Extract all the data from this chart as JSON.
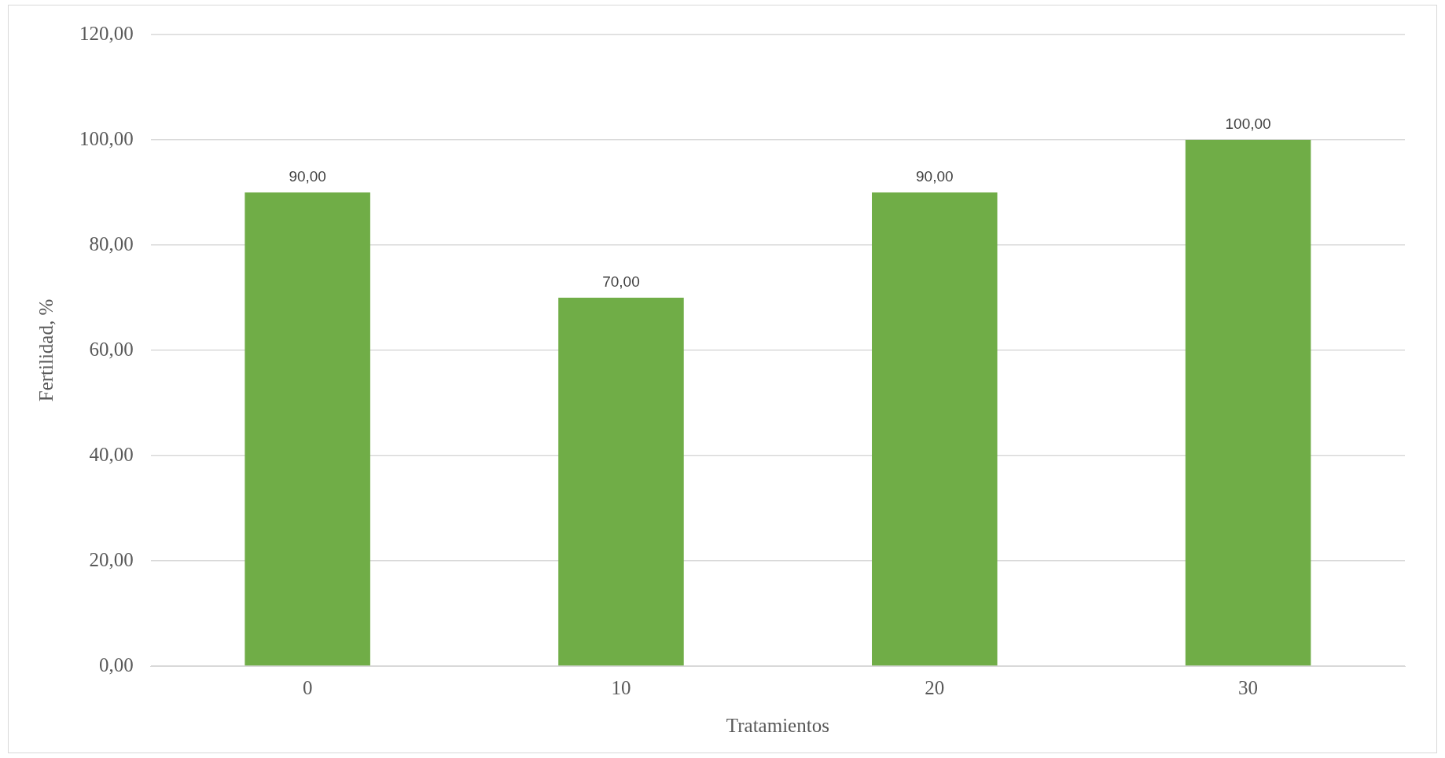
{
  "chart_data": {
    "type": "bar",
    "xlabel": "Tratamientos",
    "ylabel": "Fertilidad, %",
    "categories": [
      "0",
      "10",
      "20",
      "30"
    ],
    "values": [
      90,
      70,
      90,
      100
    ],
    "value_labels": [
      "90,00",
      "70,00",
      "90,00",
      "100,00"
    ],
    "color": "#70ad47",
    "ylim": [
      0,
      120
    ],
    "yticks": [
      {
        "value": 0,
        "label": "0,00"
      },
      {
        "value": 20,
        "label": "20,00"
      },
      {
        "value": 40,
        "label": "40,00"
      },
      {
        "value": 60,
        "label": "60,00"
      },
      {
        "value": 80,
        "label": "80,00"
      },
      {
        "value": 100,
        "label": "100,00"
      },
      {
        "value": 120,
        "label": "120,00"
      }
    ],
    "grid": "y",
    "legend": false
  }
}
